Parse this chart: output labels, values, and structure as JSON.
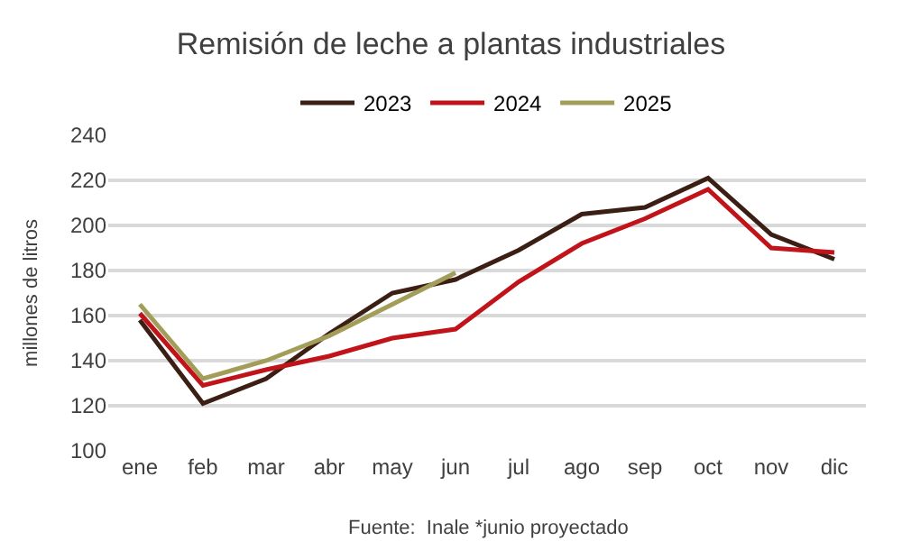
{
  "chart_data": {
    "type": "line",
    "title": "Remisión de leche a plantas industriales",
    "ylabel": "millones de litros",
    "categories": [
      "ene",
      "feb",
      "mar",
      "abr",
      "may",
      "jun",
      "jul",
      "ago",
      "sep",
      "oct",
      "nov",
      "dic"
    ],
    "series": [
      {
        "name": "2023",
        "color": "#3b1f14",
        "values": [
          158,
          121,
          132,
          152,
          170,
          176,
          189,
          205,
          208,
          221,
          196,
          185
        ]
      },
      {
        "name": "2024",
        "color": "#c0141a",
        "values": [
          161,
          129,
          136,
          142,
          150,
          154,
          175,
          192,
          203,
          216,
          190,
          188
        ]
      },
      {
        "name": "2025",
        "color": "#a39d5a",
        "values": [
          165,
          132,
          140,
          151,
          165,
          179,
          null,
          null,
          null,
          null,
          null,
          null
        ]
      }
    ],
    "ylim": [
      100,
      240
    ],
    "yticks": [
      100,
      120,
      140,
      160,
      180,
      200,
      220,
      240
    ],
    "grid": "y",
    "legend": "top",
    "marker": "none",
    "line_style": "solid",
    "annotations": [
      "Fuente:  Inale *junio proyectado"
    ]
  }
}
